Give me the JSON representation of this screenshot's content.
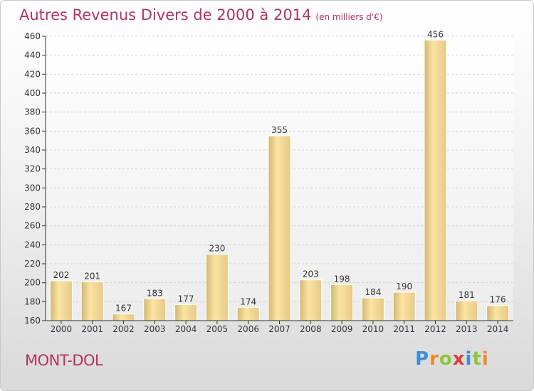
{
  "title": "Autres Revenus Divers de 2000 à 2014",
  "unit": "(en milliers d'€)",
  "commune": "MONT-DOL",
  "logo": {
    "text": "Proxiti",
    "letters": [
      "P",
      "r",
      "o",
      "x",
      "i",
      "t",
      "i"
    ],
    "colors": [
      "#3a8fd8",
      "#f08a1e",
      "#8cc63f",
      "#e23b3b",
      "#3a8fd8",
      "#8cc63f",
      "#f08a1e"
    ]
  },
  "colors": {
    "accent": "#b5335b",
    "bar_light": "#fbe3a2",
    "bar_dark": "#cdb273",
    "axis": "#333333",
    "grid": "#d0d0d0"
  },
  "chart_data": {
    "type": "bar",
    "title": "Autres Revenus Divers de 2000 à 2014",
    "subtitle": "(en milliers d'€)",
    "xlabel": "",
    "ylabel": "",
    "categories": [
      "2000",
      "2001",
      "2002",
      "2003",
      "2004",
      "2005",
      "2006",
      "2007",
      "2008",
      "2009",
      "2010",
      "2011",
      "2012",
      "2013",
      "2014"
    ],
    "values": [
      202,
      201,
      167,
      183,
      177,
      230,
      174,
      355,
      203,
      198,
      184,
      190,
      456,
      181,
      176
    ],
    "ylim": [
      160,
      460
    ],
    "yticks": [
      160,
      180,
      200,
      220,
      240,
      260,
      280,
      300,
      320,
      340,
      360,
      380,
      400,
      420,
      440,
      460
    ],
    "grid": true,
    "legend": "none"
  }
}
